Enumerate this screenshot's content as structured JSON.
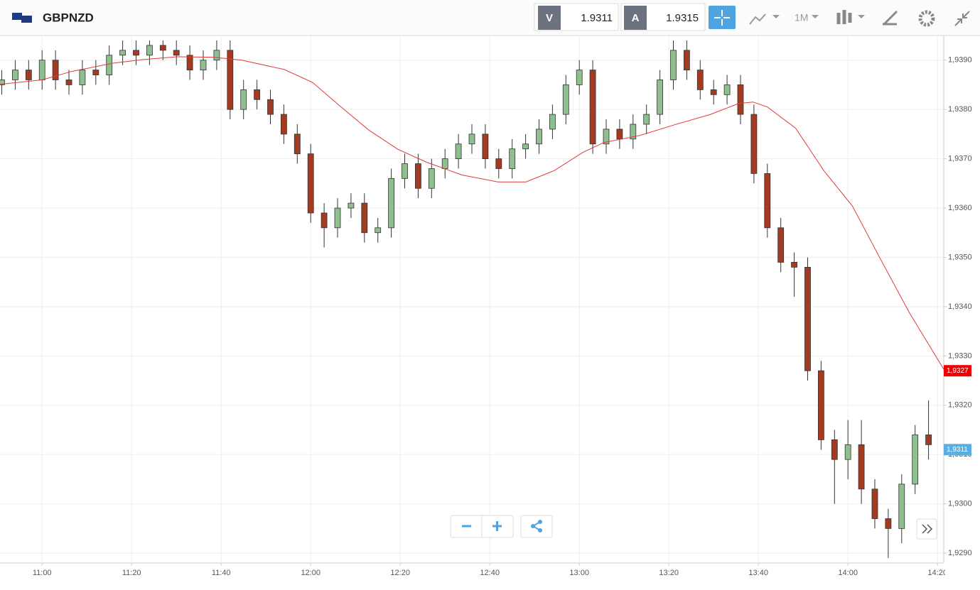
{
  "header": {
    "symbol": "GBPNZD",
    "sell_label": "V",
    "sell_price": "1.9311",
    "buy_label": "A",
    "buy_price": "1.9315",
    "timeframe": "1M"
  },
  "chart_data": {
    "type": "candlestick",
    "x": [
      651,
      654,
      657,
      660,
      663,
      666,
      669,
      672,
      675,
      678,
      681,
      684,
      687,
      690,
      693,
      696,
      699,
      702,
      705,
      708,
      711,
      714,
      717,
      720,
      723,
      726,
      729,
      732,
      735,
      738,
      741,
      744,
      747,
      750,
      753,
      756,
      759,
      762,
      765,
      768,
      771,
      774,
      777,
      780,
      783,
      786,
      789,
      792,
      795,
      798,
      801,
      804,
      807,
      810,
      813,
      816,
      819,
      822,
      825,
      828,
      831,
      834,
      837,
      840,
      843,
      846,
      849,
      852,
      855,
      858
    ],
    "open": [
      1.9385,
      1.9386,
      1.9388,
      1.9386,
      1.939,
      1.9386,
      1.9385,
      1.9388,
      1.9387,
      1.9391,
      1.9392,
      1.9391,
      1.9393,
      1.9392,
      1.9391,
      1.9388,
      1.939,
      1.9392,
      1.938,
      1.9384,
      1.9382,
      1.9379,
      1.9375,
      1.9371,
      1.9359,
      1.9356,
      1.936,
      1.9361,
      1.9355,
      1.9356,
      1.9366,
      1.9369,
      1.9364,
      1.9368,
      1.937,
      1.9373,
      1.9375,
      1.937,
      1.9368,
      1.9372,
      1.9373,
      1.9376,
      1.9379,
      1.9385,
      1.9388,
      1.9373,
      1.9376,
      1.9374,
      1.9377,
      1.9379,
      1.9386,
      1.9392,
      1.9388,
      1.9384,
      1.9383,
      1.9385,
      1.9379,
      1.9367,
      1.9356,
      1.9349,
      1.9348,
      1.9327,
      1.9313,
      1.9309,
      1.9312,
      1.9303,
      1.9297,
      1.9295,
      1.9304,
      1.9314
    ],
    "high": [
      1.9388,
      1.939,
      1.939,
      1.9392,
      1.9392,
      1.9388,
      1.939,
      1.939,
      1.9393,
      1.9394,
      1.9394,
      1.9394,
      1.9394,
      1.9394,
      1.9393,
      1.9392,
      1.9394,
      1.9394,
      1.9386,
      1.9386,
      1.9384,
      1.9381,
      1.9377,
      1.9373,
      1.9361,
      1.9362,
      1.9363,
      1.9363,
      1.9358,
      1.9368,
      1.9371,
      1.9371,
      1.937,
      1.9372,
      1.9375,
      1.9377,
      1.9377,
      1.9372,
      1.9374,
      1.9375,
      1.9378,
      1.9381,
      1.9387,
      1.939,
      1.939,
      1.9378,
      1.9378,
      1.9379,
      1.9381,
      1.9388,
      1.9394,
      1.9394,
      1.939,
      1.9386,
      1.9387,
      1.9387,
      1.9381,
      1.9369,
      1.9358,
      1.9351,
      1.935,
      1.9329,
      1.9315,
      1.9317,
      1.9317,
      1.9305,
      1.9299,
      1.9306,
      1.9316,
      1.9321
    ],
    "low": [
      1.9383,
      1.9384,
      1.9384,
      1.9384,
      1.9384,
      1.9383,
      1.9383,
      1.9385,
      1.9385,
      1.9389,
      1.9389,
      1.9389,
      1.939,
      1.9389,
      1.9386,
      1.9386,
      1.9388,
      1.9378,
      1.9378,
      1.938,
      1.9377,
      1.9373,
      1.9369,
      1.9357,
      1.9352,
      1.9354,
      1.9358,
      1.9353,
      1.9353,
      1.9354,
      1.9364,
      1.9362,
      1.9362,
      1.9366,
      1.9368,
      1.9371,
      1.9368,
      1.9366,
      1.9366,
      1.937,
      1.9371,
      1.9374,
      1.9377,
      1.9383,
      1.9371,
      1.9371,
      1.9372,
      1.9372,
      1.9375,
      1.9377,
      1.9384,
      1.9386,
      1.9382,
      1.9381,
      1.9381,
      1.9377,
      1.9365,
      1.9354,
      1.9347,
      1.9342,
      1.9325,
      1.9311,
      1.93,
      1.9305,
      1.93,
      1.9295,
      1.9289,
      1.9292,
      1.9302,
      1.9309
    ],
    "close": [
      1.9386,
      1.9388,
      1.9386,
      1.939,
      1.9386,
      1.9385,
      1.9388,
      1.9387,
      1.9391,
      1.9392,
      1.9391,
      1.9393,
      1.9392,
      1.9391,
      1.9388,
      1.939,
      1.9392,
      1.938,
      1.9384,
      1.9382,
      1.9379,
      1.9375,
      1.9371,
      1.9359,
      1.9356,
      1.936,
      1.9361,
      1.9355,
      1.9356,
      1.9366,
      1.9369,
      1.9364,
      1.9368,
      1.937,
      1.9373,
      1.9375,
      1.937,
      1.9368,
      1.9372,
      1.9373,
      1.9376,
      1.9379,
      1.9385,
      1.9388,
      1.9373,
      1.9376,
      1.9374,
      1.9377,
      1.9379,
      1.9386,
      1.9392,
      1.9388,
      1.9384,
      1.9383,
      1.9385,
      1.9379,
      1.9367,
      1.9356,
      1.9349,
      1.9348,
      1.9327,
      1.9313,
      1.9309,
      1.9312,
      1.9303,
      1.9297,
      1.9295,
      1.9304,
      1.9314,
      1.9312
    ],
    "up_color": "#8fbf8f",
    "down_color": "#a33a22",
    "xlim": [
      650.6,
      861.4
    ],
    "xticks": [
      {
        "value": 660,
        "label": "11:00"
      },
      {
        "value": 680,
        "label": "11:20"
      },
      {
        "value": 700,
        "label": "11:40"
      },
      {
        "value": 720,
        "label": "12:00"
      },
      {
        "value": 740,
        "label": "12:20"
      },
      {
        "value": 760,
        "label": "12:40"
      },
      {
        "value": 780,
        "label": "13:00"
      },
      {
        "value": 800,
        "label": "13:20"
      },
      {
        "value": 820,
        "label": "13:40"
      },
      {
        "value": 840,
        "label": "14:00"
      },
      {
        "value": 860,
        "label": "14:20"
      }
    ],
    "ylim": [
      1.9288,
      1.9395
    ],
    "yticks": [
      {
        "value": 1.929,
        "label": "1,9290"
      },
      {
        "value": 1.93,
        "label": "1,9300"
      },
      {
        "value": 1.931,
        "label": "1,9310"
      },
      {
        "value": 1.932,
        "label": "1,9320"
      },
      {
        "value": 1.933,
        "label": "1,9330"
      },
      {
        "value": 1.934,
        "label": "1,9340"
      },
      {
        "value": 1.935,
        "label": "1,9350"
      },
      {
        "value": 1.936,
        "label": "1,9360"
      },
      {
        "value": 1.937,
        "label": "1,9370"
      },
      {
        "value": 1.938,
        "label": "1,9380"
      },
      {
        "value": 1.939,
        "label": "1,9390"
      }
    ],
    "grid": true,
    "moving_average": {
      "color": "#e03a3a",
      "x": [
        650.6,
        660,
        666.5,
        676,
        682.4,
        690.3,
        698.3,
        704.6,
        714.1,
        720.4,
        726.8,
        733,
        739.5,
        745.9,
        753.8,
        761.8,
        768.1,
        774.4,
        780.8,
        785.5,
        793.4,
        801.3,
        809.3,
        815.6,
        818.8,
        822,
        828.3,
        834.6,
        841,
        847.3,
        853.7,
        861.4
      ],
      "values": [
        1.93851,
        1.9386,
        1.93877,
        1.93894,
        1.93901,
        1.93907,
        1.93906,
        1.939,
        1.93881,
        1.93855,
        1.93805,
        1.93758,
        1.93719,
        1.93693,
        1.93667,
        1.93653,
        1.93653,
        1.93676,
        1.93713,
        1.93733,
        1.93747,
        1.93769,
        1.9379,
        1.93812,
        1.93815,
        1.93805,
        1.93762,
        1.93676,
        1.93604,
        1.93496,
        1.93388,
        1.93273
      ]
    },
    "price_tags": [
      {
        "value": 1.9327,
        "label": "1,9327",
        "color": "#f00000"
      },
      {
        "value": 1.9311,
        "label": "1,9311",
        "color": "#5aaee0"
      }
    ]
  }
}
